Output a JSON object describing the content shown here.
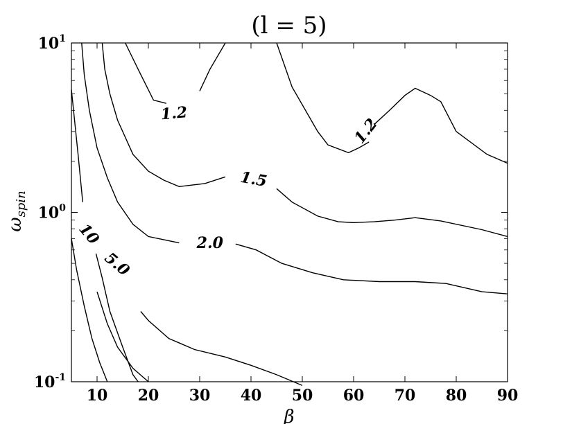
{
  "chart_data": {
    "type": "contour",
    "title": "(l = 5)",
    "xlabel": "β",
    "ylabel": "ω",
    "ylabel_sub": "spin",
    "xlim": [
      5,
      90
    ],
    "ylim": [
      0.1,
      10
    ],
    "yscale": "log",
    "x_ticks": [
      10,
      20,
      30,
      40,
      50,
      60,
      70,
      80,
      90
    ],
    "y_ticks": [
      {
        "base": "10",
        "exp": "-1",
        "value": 0.1
      },
      {
        "base": "10",
        "exp": "0",
        "value": 1
      },
      {
        "base": "10",
        "exp": "1",
        "value": 10
      }
    ],
    "contours": [
      {
        "level": "1.2",
        "label_at": [
          25,
          3.8
        ],
        "label_rot": -5,
        "segments": [
          [
            [
              15.5,
              10
            ],
            [
              18,
              7
            ],
            [
              21,
              4.6
            ],
            [
              23.5,
              4.4
            ]
          ],
          [
            [
              30,
              5.2
            ],
            [
              32,
              7
            ],
            [
              35,
              10
            ]
          ]
        ]
      },
      {
        "level": "1.2",
        "label_at": [
          62.5,
          3.0
        ],
        "label_rot": -52,
        "segments": [
          [
            [
              45,
              10
            ],
            [
              48,
              5.5
            ],
            [
              53,
              3.0
            ],
            [
              55,
              2.5
            ],
            [
              59,
              2.25
            ],
            [
              61,
              2.4
            ],
            [
              63,
              2.6
            ]
          ],
          [
            [
              64,
              3.3
            ],
            [
              67,
              4.0
            ],
            [
              70,
              4.9
            ],
            [
              72,
              5.4
            ],
            [
              75,
              4.9
            ],
            [
              77,
              4.5
            ],
            [
              80,
              3.0
            ],
            [
              86,
              2.2
            ],
            [
              90,
              1.95
            ]
          ]
        ]
      },
      {
        "level": "1.5",
        "label_at": [
          40.5,
          1.55
        ],
        "label_rot": 10,
        "segments": [
          [
            [
              11,
              10
            ],
            [
              11.5,
              7
            ],
            [
              12.5,
              5.0
            ],
            [
              14,
              3.5
            ],
            [
              17,
              2.2
            ],
            [
              20,
              1.75
            ],
            [
              23,
              1.55
            ],
            [
              26,
              1.42
            ],
            [
              31,
              1.48
            ],
            [
              35,
              1.62
            ]
          ],
          [
            [
              45,
              1.38
            ],
            [
              48,
              1.15
            ],
            [
              53,
              0.95
            ],
            [
              57,
              0.88
            ],
            [
              60,
              0.87
            ],
            [
              64,
              0.88
            ],
            [
              68,
              0.9
            ],
            [
              72,
              0.93
            ],
            [
              77,
              0.89
            ],
            [
              85,
              0.79
            ],
            [
              90,
              0.72
            ]
          ]
        ]
      },
      {
        "level": "2.0",
        "label_at": [
          32,
          0.65
        ],
        "label_rot": 0,
        "segments": [
          [
            [
              7,
              10
            ],
            [
              7.5,
              6.5
            ],
            [
              8.5,
              4.0
            ],
            [
              10,
              2.4
            ],
            [
              12,
              1.6
            ],
            [
              14,
              1.15
            ],
            [
              17,
              0.85
            ],
            [
              20,
              0.72
            ],
            [
              26,
              0.66
            ]
          ],
          [
            [
              37,
              0.65
            ],
            [
              41,
              0.6
            ],
            [
              46,
              0.5
            ],
            [
              52,
              0.44
            ],
            [
              58,
              0.4
            ],
            [
              65,
              0.39
            ],
            [
              72,
              0.39
            ],
            [
              78,
              0.38
            ],
            [
              85,
              0.34
            ],
            [
              90,
              0.33
            ]
          ]
        ]
      },
      {
        "level": "10",
        "label_at": [
          8.3,
          0.74
        ],
        "label_rot": 50,
        "segments": [
          [
            [
              5,
              5.3
            ],
            [
              6.3,
              2.2
            ],
            [
              7.2,
              1.15
            ]
          ],
          [
            [
              9.8,
              0.57
            ],
            [
              11,
              0.41
            ],
            [
              12.5,
              0.26
            ],
            [
              15,
              0.16
            ],
            [
              17,
              0.11
            ],
            [
              18,
              0.1
            ]
          ]
        ]
      },
      {
        "level": "5.0",
        "label_at": [
          13.8,
          0.49
        ],
        "label_rot": 40,
        "segments": [
          [
            [
              5,
              0.7
            ],
            [
              6,
              0.46
            ],
            [
              7.5,
              0.28
            ],
            [
              9,
              0.18
            ],
            [
              10.5,
              0.13
            ],
            [
              12,
              0.1
            ]
          ],
          [
            [
              10,
              0.34
            ],
            [
              12,
              0.22
            ],
            [
              14,
              0.16
            ],
            [
              17,
              0.12
            ],
            [
              20,
              0.1
            ]
          ]
        ]
      },
      {
        "level": "",
        "label_at": null,
        "label_rot": 0,
        "segments": [
          [
            [
              18.5,
              0.26
            ],
            [
              20,
              0.23
            ],
            [
              24,
              0.18
            ],
            [
              29,
              0.155
            ],
            [
              35,
              0.14
            ],
            [
              40,
              0.125
            ],
            [
              45,
              0.11
            ],
            [
              50,
              0.095
            ]
          ]
        ]
      }
    ]
  }
}
